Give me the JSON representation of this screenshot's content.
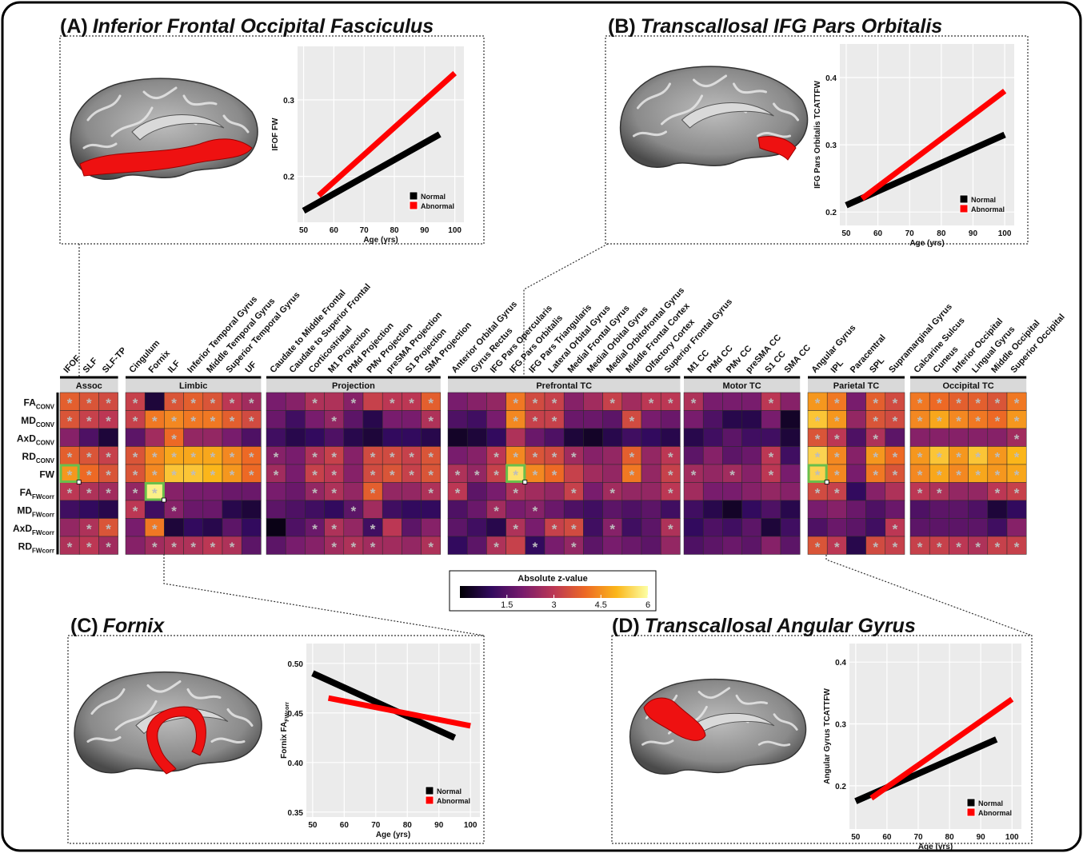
{
  "chart_data": [
    {
      "type": "heatmap",
      "row_labels": [
        {
          "base": "FA",
          "sub": "CONV"
        },
        {
          "base": "MD",
          "sub": "CONV"
        },
        {
          "base": "AxD",
          "sub": "CONV"
        },
        {
          "base": "RD",
          "sub": "CONV"
        },
        {
          "base": "FW",
          "sub": ""
        },
        {
          "base": "FA",
          "sub": "FWcorr"
        },
        {
          "base": "MD",
          "sub": "FWcorr"
        },
        {
          "base": "AxD",
          "sub": "FWcorr"
        },
        {
          "base": "RD",
          "sub": "FWcorr"
        }
      ],
      "groups": [
        {
          "name": "Assoc",
          "columns": [
            "IFOF",
            "SLF",
            "SLF-TP"
          ]
        },
        {
          "name": "Limbic",
          "columns": [
            "Cingulum",
            "Fornix",
            "ILF",
            "Inferior Temporal Gyrus",
            "Middle Temporal Gyrus",
            "Superior Temporal Gyrus",
            "UF"
          ]
        },
        {
          "name": "Projection",
          "columns": [
            "Caudate to Middle Frontal",
            "Caudate to Superior Frontal",
            "Corticostriatal",
            "M1 Projection",
            "PMd Projection",
            "PMv Projection",
            "preSMA Projection",
            "S1 Projection",
            "SMA Projection"
          ]
        },
        {
          "name": "Prefrontal TC",
          "columns": [
            "Anterior Orbital Gyrus",
            "Gyrus Rectus",
            "IFG Pars Opercularis",
            "IFG Pars Orbitalis",
            "IFG Pars Triangularis",
            "Lateral Orbital Gyrus",
            "Medial Frontal Gyrus",
            "Medial Orbital Gyrus",
            "Medial Orbitofrontal Gyrus",
            "Middle Frontal Cortex",
            "Olfactory Cortex",
            "Superior Frontal Gyrus"
          ]
        },
        {
          "name": "Motor TC",
          "columns": [
            "M1 CC",
            "PMd CC",
            "PMv CC",
            "preSMA CC",
            "S1 CC",
            "SMA CC"
          ]
        },
        {
          "name": "Parietal TC",
          "columns": [
            "Angular Gyrus",
            "IPL",
            "Paracentral",
            "SPL",
            "Supramarginal Gyrus"
          ]
        },
        {
          "name": "Occipital TC",
          "columns": [
            "Calcarine Sulcus",
            "Cuneus",
            "Inferior Occipital",
            "Lingual Gyrus",
            "Middle Occipital",
            "Superior Occipital"
          ]
        }
      ],
      "values": [
        [
          3.8,
          3.6,
          3.4,
          3.2,
          0.6,
          3.6,
          3.8,
          3.6,
          3.0,
          2.6,
          2.0,
          2.2,
          2.8,
          2.8,
          2.2,
          3.2,
          3.0,
          3.0,
          3.8,
          2.0,
          2.2,
          2.4,
          4.2,
          3.4,
          3.2,
          2.2,
          2.6,
          3.2,
          2.6,
          3.0,
          3.0,
          2.8,
          2.0,
          2.0,
          2.0,
          3.0,
          2.2,
          4.6,
          4.2,
          2.0,
          3.8,
          3.4,
          4.2,
          4.0,
          3.8,
          3.8,
          3.6,
          4.2
        ],
        [
          3.6,
          3.2,
          3.0,
          3.2,
          4.2,
          4.4,
          4.2,
          4.2,
          3.8,
          3.4,
          1.8,
          1.2,
          2.0,
          2.4,
          1.6,
          0.8,
          2.0,
          2.0,
          2.8,
          1.4,
          1.2,
          2.0,
          4.4,
          3.2,
          3.2,
          1.8,
          1.8,
          1.6,
          3.4,
          2.0,
          1.8,
          2.0,
          1.4,
          0.8,
          0.8,
          2.0,
          0.4,
          5.2,
          4.6,
          2.4,
          3.6,
          3.4,
          4.4,
          4.8,
          4.4,
          4.2,
          4.0,
          4.6
        ],
        [
          2.2,
          1.4,
          0.6,
          1.6,
          2.6,
          4.0,
          2.4,
          2.4,
          2.0,
          1.4,
          1.2,
          0.8,
          1.0,
          1.4,
          0.8,
          0.6,
          1.0,
          1.0,
          0.8,
          0.4,
          0.6,
          1.0,
          2.8,
          1.8,
          1.4,
          0.6,
          0.4,
          0.8,
          1.2,
          1.0,
          0.8,
          0.8,
          1.2,
          1.6,
          1.2,
          1.2,
          0.6,
          3.6,
          3.0,
          1.4,
          2.8,
          1.6,
          2.2,
          2.2,
          2.2,
          2.2,
          2.2,
          2.6
        ],
        [
          3.8,
          3.6,
          3.2,
          3.6,
          4.4,
          4.8,
          4.8,
          4.8,
          4.4,
          4.0,
          2.2,
          2.0,
          2.8,
          3.2,
          2.2,
          3.4,
          3.4,
          3.2,
          3.6,
          2.0,
          2.2,
          3.0,
          4.4,
          3.6,
          3.4,
          2.6,
          2.2,
          2.4,
          3.8,
          2.4,
          3.0,
          1.6,
          2.2,
          1.6,
          1.8,
          3.0,
          1.2,
          5.4,
          4.4,
          2.2,
          4.6,
          4.0,
          4.6,
          5.2,
          4.6,
          5.2,
          4.6,
          5.0
        ],
        [
          4.6,
          4.0,
          3.6,
          3.6,
          4.4,
          5.2,
          5.2,
          5.0,
          4.6,
          4.0,
          2.6,
          2.0,
          3.2,
          3.0,
          2.2,
          3.4,
          3.6,
          3.2,
          3.6,
          2.8,
          2.4,
          3.2,
          5.6,
          4.4,
          4.0,
          3.2,
          2.6,
          2.4,
          4.2,
          2.4,
          3.2,
          2.6,
          2.4,
          2.6,
          2.2,
          3.0,
          2.0,
          5.4,
          4.4,
          2.0,
          4.2,
          3.6,
          4.4,
          4.8,
          4.4,
          4.8,
          4.6,
          4.8
        ],
        [
          3.0,
          2.8,
          2.6,
          2.4,
          5.8,
          2.2,
          2.0,
          2.0,
          1.8,
          1.8,
          2.0,
          1.8,
          2.4,
          2.8,
          2.4,
          3.8,
          2.4,
          2.4,
          2.8,
          3.0,
          1.6,
          2.0,
          2.8,
          2.6,
          2.4,
          3.2,
          2.0,
          2.6,
          2.4,
          2.4,
          3.0,
          2.6,
          2.0,
          2.0,
          2.2,
          2.4,
          2.2,
          3.4,
          3.2,
          1.0,
          2.2,
          2.8,
          3.0,
          2.8,
          2.4,
          2.4,
          3.0,
          3.2
        ],
        [
          1.2,
          1.0,
          0.8,
          3.0,
          1.2,
          2.2,
          1.8,
          1.8,
          0.8,
          0.6,
          1.6,
          1.4,
          1.2,
          1.0,
          1.6,
          2.6,
          1.2,
          1.0,
          1.0,
          1.4,
          1.8,
          2.6,
          2.0,
          2.2,
          1.8,
          1.4,
          1.2,
          1.6,
          1.4,
          1.6,
          1.2,
          1.2,
          0.8,
          0.4,
          1.0,
          1.4,
          0.8,
          2.0,
          2.2,
          1.8,
          1.4,
          1.8,
          1.4,
          1.6,
          1.6,
          1.4,
          0.6,
          1.0
        ],
        [
          2.4,
          2.8,
          3.6,
          2.0,
          4.2,
          0.6,
          1.0,
          0.8,
          1.6,
          1.0,
          0.2,
          1.4,
          1.8,
          2.8,
          2.4,
          1.2,
          3.0,
          1.6,
          2.2,
          1.6,
          1.2,
          0.8,
          2.8,
          2.0,
          3.2,
          3.4,
          1.2,
          2.2,
          1.2,
          1.6,
          2.8,
          1.0,
          1.4,
          1.2,
          1.6,
          0.6,
          1.2,
          1.4,
          1.8,
          1.6,
          1.2,
          3.0,
          1.6,
          1.6,
          1.6,
          1.6,
          1.2,
          2.2
        ],
        [
          2.8,
          3.0,
          2.6,
          2.2,
          2.6,
          2.8,
          2.8,
          3.0,
          2.8,
          1.6,
          1.6,
          2.0,
          2.2,
          2.6,
          2.8,
          2.6,
          2.6,
          2.4,
          2.8,
          1.0,
          1.6,
          2.8,
          3.2,
          1.0,
          2.0,
          2.4,
          1.6,
          2.0,
          1.8,
          1.6,
          2.4,
          1.4,
          1.6,
          1.8,
          1.6,
          2.2,
          1.6,
          3.6,
          3.0,
          0.8,
          3.4,
          3.2,
          3.2,
          3.2,
          3.0,
          2.8,
          3.2,
          3.2
        ]
      ],
      "stars": [
        [
          1,
          1,
          1,
          1,
          0,
          1,
          1,
          1,
          1,
          1,
          0,
          0,
          1,
          0,
          1,
          0,
          1,
          1,
          1,
          0,
          0,
          0,
          1,
          1,
          1,
          0,
          0,
          1,
          0,
          1,
          1,
          1,
          0,
          0,
          0,
          1,
          0,
          1,
          1,
          0,
          1,
          1,
          1,
          1,
          1,
          1,
          1,
          1
        ],
        [
          1,
          1,
          1,
          1,
          1,
          1,
          1,
          1,
          1,
          1,
          0,
          0,
          0,
          1,
          0,
          0,
          0,
          0,
          1,
          0,
          0,
          0,
          1,
          1,
          1,
          0,
          0,
          0,
          1,
          0,
          0,
          0,
          0,
          0,
          0,
          0,
          0,
          1,
          1,
          0,
          1,
          1,
          1,
          1,
          1,
          1,
          1,
          1
        ],
        [
          0,
          0,
          0,
          0,
          0,
          1,
          0,
          0,
          0,
          0,
          0,
          0,
          0,
          0,
          0,
          0,
          0,
          0,
          0,
          0,
          0,
          0,
          0,
          0,
          0,
          0,
          0,
          0,
          0,
          0,
          0,
          0,
          0,
          0,
          0,
          0,
          0,
          1,
          1,
          0,
          1,
          0,
          0,
          0,
          0,
          0,
          0,
          1
        ],
        [
          1,
          1,
          1,
          1,
          1,
          1,
          1,
          1,
          1,
          1,
          1,
          0,
          1,
          1,
          0,
          1,
          1,
          1,
          1,
          0,
          0,
          1,
          1,
          1,
          1,
          1,
          0,
          0,
          1,
          0,
          1,
          0,
          0,
          0,
          0,
          1,
          0,
          1,
          1,
          0,
          1,
          1,
          1,
          1,
          1,
          1,
          1,
          1
        ],
        [
          1,
          1,
          1,
          1,
          1,
          1,
          1,
          1,
          1,
          1,
          1,
          0,
          1,
          1,
          0,
          1,
          1,
          1,
          1,
          1,
          1,
          1,
          1,
          1,
          1,
          0,
          0,
          0,
          1,
          0,
          1,
          1,
          0,
          1,
          0,
          1,
          0,
          1,
          1,
          0,
          1,
          1,
          1,
          1,
          1,
          1,
          1,
          1
        ],
        [
          1,
          1,
          1,
          1,
          1,
          0,
          0,
          0,
          0,
          0,
          0,
          0,
          1,
          1,
          0,
          1,
          0,
          0,
          1,
          1,
          0,
          0,
          1,
          0,
          0,
          1,
          0,
          1,
          0,
          0,
          1,
          0,
          0,
          0,
          0,
          0,
          0,
          1,
          1,
          0,
          0,
          0,
          1,
          1,
          0,
          0,
          1,
          1
        ],
        [
          0,
          0,
          0,
          1,
          0,
          1,
          0,
          0,
          0,
          0,
          0,
          0,
          0,
          0,
          1,
          0,
          0,
          0,
          0,
          0,
          0,
          1,
          0,
          1,
          0,
          0,
          0,
          0,
          0,
          0,
          0,
          0,
          0,
          0,
          0,
          0,
          0,
          0,
          0,
          0,
          0,
          0,
          0,
          0,
          0,
          0,
          0,
          0
        ],
        [
          0,
          1,
          1,
          0,
          1,
          0,
          0,
          0,
          0,
          0,
          0,
          0,
          1,
          1,
          0,
          1,
          0,
          0,
          0,
          0,
          0,
          0,
          1,
          0,
          1,
          1,
          0,
          1,
          0,
          0,
          1,
          0,
          0,
          0,
          0,
          0,
          0,
          0,
          0,
          0,
          0,
          1,
          0,
          0,
          0,
          0,
          0,
          0
        ],
        [
          1,
          1,
          1,
          0,
          1,
          1,
          1,
          1,
          1,
          0,
          0,
          0,
          0,
          1,
          1,
          1,
          0,
          0,
          1,
          0,
          0,
          1,
          0,
          1,
          0,
          1,
          0,
          0,
          0,
          0,
          0,
          0,
          0,
          0,
          0,
          0,
          0,
          1,
          1,
          0,
          1,
          1,
          1,
          1,
          1,
          1,
          1,
          1
        ]
      ],
      "star_label": "*",
      "colorbar": {
        "title": "Absolute z-value",
        "lim": [
          0,
          6
        ],
        "ticks": [
          1.5,
          3,
          4.5,
          6
        ]
      },
      "colorscale": [
        "#000004",
        "#320a5e",
        "#781c6d",
        "#bc3754",
        "#ed6925",
        "#fbb61a",
        "#fcffa4"
      ],
      "highlights": [
        [
          4,
          0
        ],
        [
          5,
          4
        ],
        [
          4,
          22
        ],
        [
          4,
          37
        ]
      ],
      "highlight_color": "#6abf4b"
    },
    {
      "type": "line",
      "panel_label": "(A)",
      "title": "Inferior Frontal Occipital Fasciculus",
      "xlabel": "Age (yrs)",
      "ylabel": {
        "base": "IFOF FW",
        "sub": ""
      },
      "xlim": [
        48,
        103
      ],
      "xticks": [
        50,
        60,
        70,
        80,
        90,
        100
      ],
      "ylim": [
        0.14,
        0.37
      ],
      "yticks": [
        0.2,
        0.3
      ],
      "series": [
        {
          "name": "Normal",
          "color": "#000000",
          "x": [
            50,
            95
          ],
          "values": [
            0.155,
            0.255
          ]
        },
        {
          "name": "Abnormal",
          "color": "#ff0000",
          "x": [
            55,
            100
          ],
          "values": [
            0.175,
            0.335
          ]
        }
      ],
      "legend": "bottom-right"
    },
    {
      "type": "line",
      "panel_label": "(B)",
      "title": "Transcallosal IFG Pars Orbitalis",
      "xlabel": "Age (yrs)",
      "ylabel": {
        "base": "IFG Pars Orbitalis TCATTFW",
        "sub": ""
      },
      "xlim": [
        48,
        103
      ],
      "xticks": [
        50,
        60,
        70,
        80,
        90,
        100
      ],
      "ylim": [
        0.18,
        0.45
      ],
      "yticks": [
        0.2,
        0.3,
        0.4
      ],
      "series": [
        {
          "name": "Normal",
          "color": "#000000",
          "x": [
            50,
            100
          ],
          "values": [
            0.21,
            0.315
          ]
        },
        {
          "name": "Abnormal",
          "color": "#ff0000",
          "x": [
            55,
            100
          ],
          "values": [
            0.22,
            0.38
          ]
        }
      ],
      "legend": "bottom-right"
    },
    {
      "type": "line",
      "panel_label": "(C)",
      "title": "Fornix",
      "xlabel": "Age (yrs)",
      "ylabel": {
        "base": "Fornix FA",
        "sub": "FWcorr"
      },
      "xlim": [
        48,
        103
      ],
      "xticks": [
        50,
        60,
        70,
        80,
        90,
        100
      ],
      "ylim": [
        0.345,
        0.52
      ],
      "yticks": [
        0.35,
        {
          "value": 0.4,
          "label": "0.40"
        },
        0.45,
        {
          "value": 0.5,
          "label": "0.50"
        }
      ],
      "series": [
        {
          "name": "Normal",
          "color": "#000000",
          "x": [
            50,
            95
          ],
          "values": [
            0.49,
            0.425
          ]
        },
        {
          "name": "Abnormal",
          "color": "#ff0000",
          "x": [
            55,
            100
          ],
          "values": [
            0.465,
            0.437
          ]
        }
      ],
      "legend": "bottom-right"
    },
    {
      "type": "line",
      "panel_label": "(D)",
      "title": "Transcallosal Angular Gyrus",
      "xlabel": "Age (yrs)",
      "ylabel": {
        "base": "Angular Gyrus TCATTFW",
        "sub": ""
      },
      "xlim": [
        48,
        103
      ],
      "xticks": [
        50,
        60,
        70,
        80,
        90,
        100
      ],
      "ylim": [
        0.13,
        0.43
      ],
      "yticks": [
        0.2,
        0.3,
        0.4
      ],
      "series": [
        {
          "name": "Normal",
          "color": "#000000",
          "x": [
            50,
            95
          ],
          "values": [
            0.175,
            0.275
          ]
        },
        {
          "name": "Abnormal",
          "color": "#ff0000",
          "x": [
            55,
            100
          ],
          "values": [
            0.18,
            0.34
          ]
        }
      ],
      "legend": "bottom-right"
    }
  ]
}
